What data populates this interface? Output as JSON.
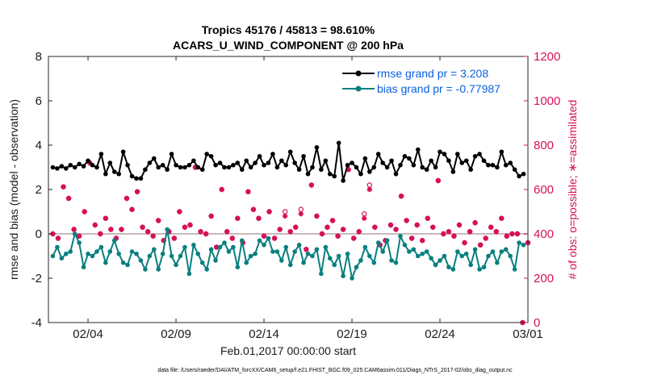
{
  "chart_data": {
    "type": "line",
    "title_line1": "Tropics 45176 / 45813 = 98.610%",
    "title_line2": "ACARS_U_WIND_COMPONENT @ 200 hPa",
    "xlabel": "Feb.01,2017 00:00:00 start",
    "ylabel_left": "rmse and bias (model - observation)",
    "ylabel_right": "# of obs: o=possible; ∗=assimilated",
    "footnote": "data file: /Users/raeder/DAI/ATM_forcXX/CAM6_setup/f.e21.FHIST_BGC.f09_025.CAM6assim.011/Diags_NTrS_2017-02/obs_diag_output.nc",
    "x_ticks": [
      "02/04",
      "02/09",
      "02/14",
      "02/19",
      "02/24",
      "03/01"
    ],
    "xlim_days": [
      0.75,
      28.0
    ],
    "x_tick_days": [
      3,
      8,
      13,
      18,
      23,
      28
    ],
    "ylim_left": [
      -4,
      8
    ],
    "y_ticks_left": [
      "-4",
      "-2",
      "0",
      "2",
      "4",
      "6",
      "8"
    ],
    "ylim_right": [
      0,
      1200
    ],
    "y_ticks_right": [
      "0",
      "200",
      "400",
      "600",
      "800",
      "1000",
      "1200"
    ],
    "colors": {
      "rmse": "#000000",
      "bias": "#0a7f7f",
      "obs": "#d6105a",
      "zero": "#c9b8bb",
      "legend_text": "#0a5fe0"
    },
    "legend": [
      {
        "name": "rmse",
        "label": "rmse grand pr = 3.208"
      },
      {
        "name": "bias",
        "label": "bias grand pr = -0.77987"
      }
    ],
    "x_days": [
      1.0,
      1.25,
      1.5,
      1.75,
      2.0,
      2.25,
      2.5,
      2.75,
      3.0,
      3.25,
      3.5,
      3.75,
      4.0,
      4.25,
      4.5,
      4.75,
      5.0,
      5.25,
      5.5,
      5.75,
      6.0,
      6.25,
      6.5,
      6.75,
      7.0,
      7.25,
      7.5,
      7.75,
      8.0,
      8.25,
      8.5,
      8.75,
      9.0,
      9.25,
      9.5,
      9.75,
      10.0,
      10.25,
      10.5,
      10.75,
      11.0,
      11.25,
      11.5,
      11.75,
      12.0,
      12.25,
      12.5,
      12.75,
      13.0,
      13.25,
      13.5,
      13.75,
      14.0,
      14.25,
      14.5,
      14.75,
      15.0,
      15.25,
      15.5,
      15.75,
      16.0,
      16.25,
      16.5,
      16.75,
      17.0,
      17.25,
      17.5,
      17.75,
      18.0,
      18.25,
      18.5,
      18.75,
      19.0,
      19.25,
      19.5,
      19.75,
      20.0,
      20.25,
      20.5,
      20.75,
      21.0,
      21.25,
      21.5,
      21.75,
      22.0,
      22.25,
      22.5,
      22.75,
      23.0,
      23.25,
      23.5,
      23.75,
      24.0,
      24.25,
      24.5,
      24.75,
      25.0,
      25.25,
      25.5,
      25.75,
      26.0,
      26.25,
      26.5,
      26.75,
      27.0,
      27.25,
      27.5,
      27.75
    ],
    "series": [
      {
        "name": "rmse",
        "values": [
          3.0,
          2.95,
          3.05,
          2.95,
          3.1,
          3.0,
          3.15,
          3.05,
          3.3,
          3.1,
          3.0,
          3.6,
          2.7,
          3.2,
          2.8,
          2.7,
          3.7,
          3.1,
          2.6,
          2.5,
          2.5,
          2.9,
          3.2,
          3.4,
          3.0,
          3.1,
          2.9,
          3.6,
          3.1,
          3.0,
          3.0,
          3.1,
          3.3,
          3.0,
          2.9,
          3.6,
          3.5,
          3.1,
          3.2,
          3.0,
          3.0,
          3.1,
          3.2,
          2.9,
          3.3,
          3.0,
          3.2,
          3.5,
          3.1,
          3.2,
          3.6,
          3.0,
          3.3,
          3.1,
          3.7,
          3.2,
          2.9,
          3.5,
          2.7,
          3.0,
          3.9,
          2.9,
          3.3,
          2.7,
          2.6,
          4.1,
          2.4,
          3.1,
          3.2,
          3.0,
          2.7,
          3.4,
          2.8,
          3.0,
          3.6,
          3.2,
          3.0,
          3.3,
          2.7,
          3.1,
          3.5,
          3.4,
          3.1,
          3.8,
          3.0,
          2.9,
          3.3,
          3.0,
          3.7,
          3.6,
          3.3,
          2.8,
          3.6,
          3.2,
          3.3,
          2.9,
          3.5,
          3.6,
          3.3,
          3.1,
          3.1,
          3.0,
          3.7,
          3.1,
          3.2,
          2.9,
          2.6,
          2.7
        ]
      },
      {
        "name": "bias",
        "values": [
          -1.0,
          -0.6,
          -1.1,
          -0.9,
          -0.8,
          0.0,
          -0.4,
          -1.5,
          -0.9,
          -1.0,
          -0.8,
          -0.6,
          -1.3,
          -0.8,
          -0.3,
          -0.9,
          -1.3,
          -1.4,
          -0.8,
          -0.9,
          -1.2,
          -1.6,
          -1.0,
          -0.7,
          -1.6,
          -0.9,
          0.2,
          -1.0,
          -1.4,
          -1.0,
          -0.6,
          -1.8,
          -0.5,
          -0.9,
          -1.3,
          -1.6,
          -0.7,
          -1.2,
          -0.6,
          -0.4,
          -0.8,
          -0.6,
          -1.5,
          -0.3,
          -1.3,
          -1.0,
          -0.9,
          -0.3,
          -0.5,
          -0.2,
          -0.8,
          -0.8,
          -1.2,
          -0.6,
          -1.4,
          -0.8,
          -0.5,
          -1.3,
          -0.9,
          -1.0,
          -0.7,
          -1.8,
          -0.6,
          -1.1,
          -1.4,
          -1.0,
          -1.9,
          -0.9,
          -2.0,
          -1.5,
          -1.2,
          -0.6,
          -1.0,
          -1.3,
          -0.4,
          -0.8,
          -0.3,
          -1.2,
          -1.3,
          -0.1,
          -0.5,
          -0.8,
          -0.7,
          -1.0,
          -0.9,
          -0.8,
          -1.1,
          -1.4,
          -1.2,
          -1.0,
          -1.5,
          -1.6,
          -0.8,
          -1.0,
          -0.9,
          -1.4,
          -0.7,
          -1.6,
          -1.5,
          -1.0,
          -0.8,
          -1.3,
          -0.8,
          -0.7,
          -1.0,
          -1.6,
          -0.4,
          -0.5
        ]
      },
      {
        "name": "obs_possible",
        "values": []
      },
      {
        "name": "obs_assimilated",
        "values": []
      }
    ],
    "obs_x_days": [
      1.0,
      1.3,
      1.6,
      1.9,
      2.2,
      2.5,
      2.8,
      3.1,
      3.4,
      3.7,
      4.0,
      4.3,
      4.6,
      4.9,
      5.2,
      5.5,
      5.8,
      6.1,
      6.4,
      6.7,
      7.0,
      7.3,
      7.6,
      7.9,
      8.2,
      8.5,
      8.8,
      9.1,
      9.4,
      9.7,
      10.0,
      10.3,
      10.6,
      10.9,
      11.2,
      11.5,
      11.8,
      12.1,
      12.4,
      12.7,
      13.0,
      13.3,
      13.6,
      13.9,
      14.2,
      14.5,
      14.8,
      15.1,
      15.4,
      15.7,
      16.0,
      16.3,
      16.6,
      16.9,
      17.2,
      17.5,
      17.8,
      18.1,
      18.4,
      18.7,
      19.0,
      19.3,
      19.6,
      19.9,
      20.2,
      20.5,
      20.8,
      21.1,
      21.4,
      21.7,
      22.0,
      22.3,
      22.6,
      22.9,
      23.2,
      23.5,
      23.8,
      24.1,
      24.4,
      24.7,
      25.0,
      25.3,
      25.6,
      25.9,
      26.2,
      26.5,
      26.8,
      27.1,
      27.4,
      27.7,
      28.0
    ],
    "obs_possible": [
      400,
      380,
      612,
      560,
      420,
      390,
      500,
      720,
      440,
      400,
      470,
      420,
      380,
      420,
      560,
      510,
      590,
      430,
      410,
      390,
      460,
      370,
      410,
      380,
      500,
      430,
      440,
      700,
      410,
      400,
      480,
      340,
      600,
      410,
      380,
      470,
      360,
      590,
      510,
      470,
      390,
      500,
      380,
      420,
      500,
      410,
      430,
      510,
      330,
      620,
      480,
      400,
      430,
      460,
      390,
      420,
      690,
      380,
      410,
      490,
      620,
      430,
      350,
      370,
      440,
      420,
      570,
      460,
      380,
      440,
      370,
      470,
      430,
      640,
      400,
      410,
      390,
      440,
      360,
      410,
      450,
      350,
      380,
      430,
      410,
      470,
      390,
      400,
      400,
      0,
      360
    ],
    "obs_assimilated": [
      400,
      380,
      612,
      560,
      420,
      390,
      500,
      720,
      440,
      400,
      470,
      420,
      380,
      420,
      560,
      510,
      590,
      430,
      410,
      390,
      460,
      370,
      410,
      380,
      500,
      430,
      440,
      700,
      410,
      400,
      480,
      340,
      600,
      410,
      380,
      470,
      360,
      590,
      510,
      470,
      390,
      500,
      380,
      420,
      480,
      410,
      430,
      490,
      330,
      620,
      480,
      400,
      430,
      460,
      390,
      420,
      690,
      380,
      410,
      470,
      600,
      430,
      350,
      370,
      440,
      420,
      570,
      460,
      380,
      440,
      370,
      470,
      430,
      640,
      400,
      410,
      390,
      440,
      360,
      410,
      450,
      350,
      380,
      430,
      410,
      470,
      390,
      400,
      400,
      0,
      360
    ]
  }
}
